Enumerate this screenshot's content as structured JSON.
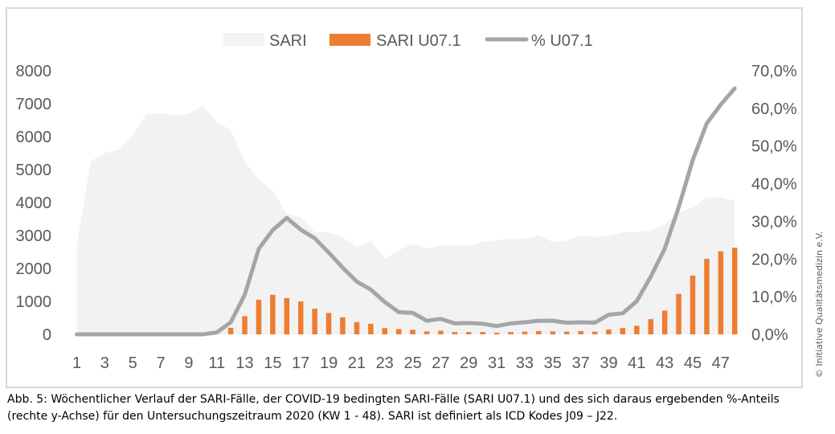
{
  "chart_data": {
    "type": "area+bar+line",
    "legend": {
      "position": "top",
      "entries": [
        {
          "label": "SARI",
          "kind": "area",
          "color": "#f2f2f2"
        },
        {
          "label": "SARI U07.1",
          "kind": "bar",
          "color": "#ed7d31"
        },
        {
          "label": "% U07.1",
          "kind": "line",
          "color": "#a5a5a5"
        }
      ]
    },
    "x": [
      1,
      2,
      3,
      4,
      5,
      6,
      7,
      8,
      9,
      10,
      11,
      12,
      13,
      14,
      15,
      16,
      17,
      18,
      19,
      20,
      21,
      22,
      23,
      24,
      25,
      26,
      27,
      28,
      29,
      30,
      31,
      32,
      33,
      34,
      35,
      36,
      37,
      38,
      39,
      40,
      41,
      42,
      43,
      44,
      45,
      46,
      47,
      48
    ],
    "x_tick_labels": [
      "1",
      "3",
      "5",
      "7",
      "9",
      "11",
      "13",
      "15",
      "17",
      "19",
      "21",
      "23",
      "25",
      "27",
      "29",
      "31",
      "33",
      "35",
      "37",
      "39",
      "41",
      "43",
      "45",
      "47"
    ],
    "y_left": {
      "min": 0,
      "max": 8000,
      "ticks": [
        "0",
        "1000",
        "2000",
        "3000",
        "4000",
        "5000",
        "6000",
        "7000",
        "8000"
      ]
    },
    "y_right": {
      "min": 0,
      "max": 70,
      "ticks": [
        "0,0%",
        "10,0%",
        "20,0%",
        "30,0%",
        "40,0%",
        "50,0%",
        "60,0%",
        "70,0%"
      ]
    },
    "grid": false,
    "series": [
      {
        "name": "SARI",
        "axis": "left",
        "type": "area",
        "values": [
          2700,
          5250,
          5500,
          5600,
          6050,
          6700,
          6700,
          6650,
          6700,
          6950,
          6450,
          6200,
          5250,
          4700,
          4350,
          3650,
          3550,
          3100,
          3100,
          2950,
          2650,
          2850,
          2300,
          2550,
          2750,
          2600,
          2700,
          2700,
          2700,
          2800,
          2850,
          2900,
          2900,
          3000,
          2800,
          2850,
          3000,
          2950,
          3000,
          3100,
          3100,
          3150,
          3350,
          3700,
          3850,
          4150,
          4150,
          4050
        ]
      },
      {
        "name": "SARI U07.1",
        "axis": "left",
        "type": "bar",
        "values": [
          0,
          0,
          0,
          0,
          0,
          0,
          0,
          0,
          0,
          0,
          0,
          200,
          550,
          1050,
          1200,
          1100,
          1000,
          780,
          650,
          520,
          370,
          320,
          190,
          160,
          140,
          90,
          110,
          70,
          70,
          70,
          50,
          70,
          80,
          100,
          90,
          80,
          100,
          80,
          150,
          190,
          260,
          460,
          720,
          1230,
          1780,
          2290,
          2520,
          2630
        ]
      },
      {
        "name": "% U07.1",
        "axis": "right",
        "type": "line",
        "values": [
          0,
          0,
          0,
          0,
          0,
          0,
          0,
          0,
          0,
          0,
          0.5,
          3.2,
          10.5,
          22.7,
          27.7,
          30.9,
          27.8,
          25.5,
          21.7,
          17.7,
          14.0,
          11.9,
          8.6,
          5.9,
          5.7,
          3.6,
          4.1,
          2.9,
          3.0,
          2.8,
          2.2,
          2.9,
          3.2,
          3.6,
          3.6,
          3.1,
          3.2,
          3.1,
          5.2,
          5.6,
          8.8,
          15.3,
          22.7,
          33.8,
          46.3,
          56.0,
          61.0,
          65.3
        ]
      }
    ]
  },
  "caption": "Abb. 5: Wöchentlicher Verlauf der SARI-Fälle, der COVID-19 bedingten SARI-Fälle (SARI U07.1) und des sich daraus ergebenden %-Anteils (rechte y-Achse) für den Untersuchungszeitraum 2020 (KW 1 - 48). SARI ist definiert als ICD Kodes J09 – J22.",
  "copyright": "© Initiative Qualitätsmedizin e.V."
}
